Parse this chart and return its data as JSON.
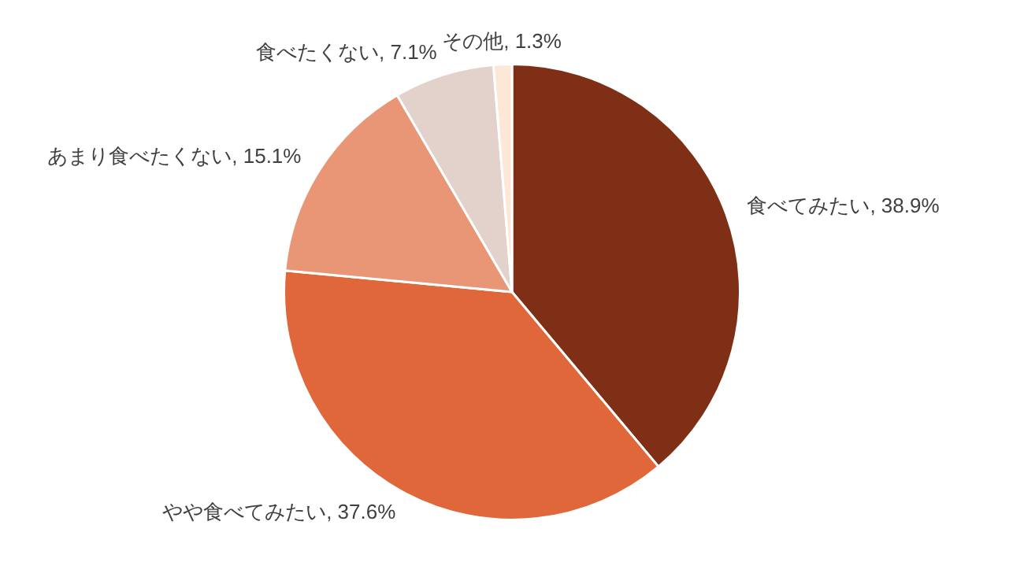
{
  "chart_data": {
    "type": "pie",
    "categories": [
      "食べてみたい",
      "やや食べてみたい",
      "あまり食べたくない",
      "食べたくない",
      "その他"
    ],
    "values": [
      38.9,
      37.6,
      15.1,
      7.1,
      1.3
    ],
    "colors": [
      "#7f2f15",
      "#e0673a",
      "#e89675",
      "#e3d1cc",
      "#fde7d6"
    ],
    "value_labels": [
      "38.9%",
      "37.6%",
      "15.1%",
      "7.1%",
      "1.3%"
    ],
    "legend": false
  }
}
